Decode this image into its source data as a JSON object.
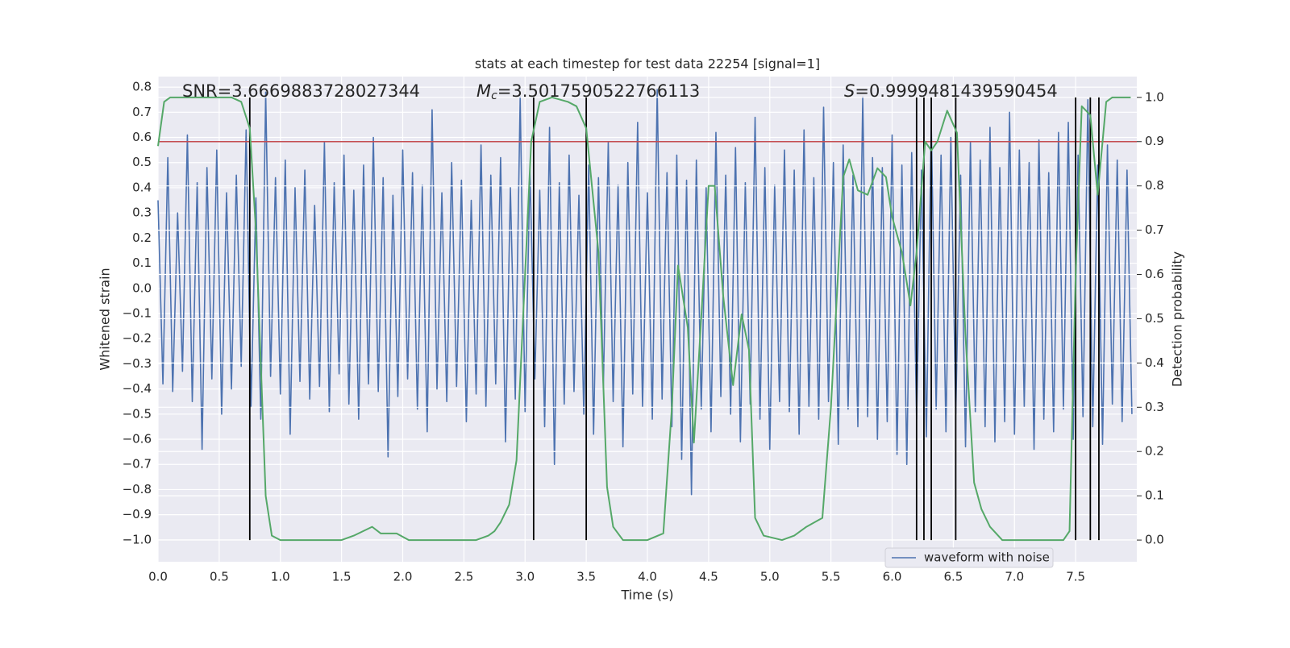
{
  "chart_data": {
    "type": "line",
    "title": "stats at each timestep for test data 22254 [signal=1]",
    "xlabel": "Time (s)",
    "ylabel": "Whitened strain",
    "y2label": "Detection probability",
    "annotations": [
      {
        "text": "SNR=3.6669883728027344"
      },
      {
        "symbol": "M",
        "subscript": "c",
        "text": "=3.5017590522766113"
      },
      {
        "symbol": "S",
        "text": "=0.9999481439590454"
      }
    ],
    "xlim": [
      0,
      8.0
    ],
    "ylim": [
      -1.087,
      0.842
    ],
    "y2lim": [
      -0.049,
      1.047
    ],
    "xticks": [
      {
        "value": 0,
        "label": "0.0"
      },
      0.5,
      {
        "value": 1,
        "label": "1.0"
      },
      1.5,
      {
        "value": 2,
        "label": "2.0"
      },
      2.5,
      {
        "value": 3,
        "label": "3.0"
      },
      3.5,
      {
        "value": 4,
        "label": "4.0"
      },
      4.5,
      {
        "value": 5,
        "label": "5.0"
      },
      5.5,
      {
        "value": 6,
        "label": "6.0"
      },
      6.5,
      {
        "value": 7,
        "label": "7.0"
      },
      7.5
    ],
    "yticks": [
      0.8,
      0.7,
      0.6,
      0.5,
      0.4,
      0.3,
      0.2,
      0.1,
      {
        "value": 0,
        "label": "0.0"
      },
      {
        "value": -0.1,
        "label": "−0.1"
      },
      {
        "value": -0.2,
        "label": "−0.2"
      },
      {
        "value": -0.3,
        "label": "−0.3"
      },
      {
        "value": -0.4,
        "label": "−0.4"
      },
      {
        "value": -0.5,
        "label": "−0.5"
      },
      {
        "value": -0.6,
        "label": "−0.6"
      },
      {
        "value": -0.7,
        "label": "−0.7"
      },
      {
        "value": -0.8,
        "label": "−0.8"
      },
      {
        "value": -0.9,
        "label": "−0.9"
      },
      {
        "value": -1.0,
        "label": "−1.0"
      }
    ],
    "y2ticks": [
      {
        "value": 1,
        "label": "1.0"
      },
      0.9,
      0.8,
      0.7,
      0.6,
      0.5,
      0.4,
      0.3,
      0.2,
      0.1,
      {
        "value": 0,
        "label": "0.0"
      }
    ],
    "grid": true,
    "legend": "lower right",
    "threshold": {
      "value": 0.9,
      "axis": "y2",
      "color": "#c44e52"
    },
    "markers": {
      "x": [
        0.75,
        3.07,
        3.5,
        6.2,
        6.26,
        6.32,
        6.52,
        7.5,
        7.62,
        7.69
      ],
      "color": "#000000",
      "axis": "y2",
      "ylim": [
        0,
        1
      ]
    },
    "series": [
      {
        "name": "waveform with noise",
        "color": "#4c72b0",
        "axis": "y",
        "x": [
          0,
          0.04,
          0.08,
          0.12,
          0.16,
          0.2,
          0.24,
          0.28,
          0.32,
          0.36,
          0.4,
          0.44,
          0.48,
          0.52,
          0.56,
          0.6,
          0.64,
          0.68,
          0.72,
          0.76,
          0.8,
          0.84,
          0.88,
          0.92,
          0.96,
          1.0,
          1.04,
          1.08,
          1.12,
          1.16,
          1.2,
          1.24,
          1.28,
          1.32,
          1.36,
          1.4,
          1.44,
          1.48,
          1.52,
          1.56,
          1.6,
          1.64,
          1.68,
          1.72,
          1.76,
          1.8,
          1.84,
          1.88,
          1.92,
          1.96,
          2.0,
          2.04,
          2.08,
          2.12,
          2.16,
          2.2,
          2.24,
          2.28,
          2.32,
          2.36,
          2.4,
          2.44,
          2.48,
          2.52,
          2.56,
          2.6,
          2.64,
          2.68,
          2.72,
          2.76,
          2.8,
          2.84,
          2.88,
          2.92,
          2.96,
          3.0,
          3.04,
          3.08,
          3.12,
          3.16,
          3.2,
          3.24,
          3.28,
          3.32,
          3.36,
          3.4,
          3.44,
          3.48,
          3.52,
          3.56,
          3.6,
          3.64,
          3.68,
          3.72,
          3.76,
          3.8,
          3.84,
          3.88,
          3.92,
          3.96,
          4.0,
          4.04,
          4.08,
          4.12,
          4.16,
          4.2,
          4.24,
          4.28,
          4.32,
          4.36,
          4.4,
          4.44,
          4.48,
          4.52,
          4.56,
          4.6,
          4.64,
          4.68,
          4.72,
          4.76,
          4.8,
          4.84,
          4.88,
          4.92,
          4.96,
          5.0,
          5.04,
          5.08,
          5.12,
          5.16,
          5.2,
          5.24,
          5.28,
          5.32,
          5.36,
          5.4,
          5.44,
          5.48,
          5.52,
          5.56,
          5.6,
          5.64,
          5.68,
          5.72,
          5.76,
          5.8,
          5.84,
          5.88,
          5.92,
          5.96,
          6.0,
          6.04,
          6.08,
          6.12,
          6.16,
          6.2,
          6.24,
          6.28,
          6.32,
          6.36,
          6.4,
          6.44,
          6.48,
          6.52,
          6.56,
          6.6,
          6.64,
          6.68,
          6.72,
          6.76,
          6.8,
          6.84,
          6.88,
          6.92,
          6.96,
          7.0,
          7.04,
          7.08,
          7.12,
          7.16,
          7.2,
          7.24,
          7.28,
          7.32,
          7.36,
          7.4,
          7.44,
          7.48,
          7.52,
          7.56,
          7.6,
          7.64,
          7.68,
          7.72,
          7.76,
          7.8,
          7.84,
          7.88,
          7.92,
          7.96
        ],
        "values": [
          0.35,
          -0.38,
          0.52,
          -0.41,
          0.3,
          -0.33,
          0.61,
          -0.45,
          0.42,
          -0.64,
          0.48,
          -0.36,
          0.55,
          -0.5,
          0.38,
          -0.4,
          0.45,
          -0.31,
          0.63,
          -0.47,
          0.36,
          -0.52,
          0.78,
          -0.35,
          0.44,
          -0.42,
          0.51,
          -0.58,
          0.4,
          -0.37,
          0.47,
          -0.44,
          0.33,
          -0.39,
          0.58,
          -0.49,
          0.42,
          -0.34,
          0.53,
          -0.46,
          0.39,
          -0.52,
          0.49,
          -0.38,
          0.6,
          -0.41,
          0.44,
          -0.67,
          0.37,
          -0.43,
          0.55,
          -0.36,
          0.46,
          -0.48,
          0.41,
          -0.57,
          0.71,
          -0.4,
          0.38,
          -0.45,
          0.5,
          -0.39,
          0.43,
          -0.53,
          0.35,
          -0.42,
          0.57,
          -0.47,
          0.45,
          -0.38,
          0.52,
          -0.61,
          0.4,
          -0.44,
          0.76,
          -0.49,
          0.47,
          -0.36,
          0.39,
          -0.55,
          0.64,
          -0.7,
          0.42,
          -0.46,
          0.53,
          -0.41,
          0.37,
          -0.5,
          0.49,
          -0.58,
          0.44,
          -0.39,
          0.58,
          -0.45,
          0.41,
          -0.63,
          0.5,
          -0.42,
          0.66,
          -0.47,
          0.38,
          -0.52,
          0.79,
          -0.44,
          0.46,
          -0.55,
          0.53,
          -0.68,
          0.43,
          -0.82,
          0.51,
          -0.48,
          0.4,
          -0.57,
          0.62,
          -0.43,
          0.45,
          -0.5,
          0.56,
          -0.61,
          0.42,
          -0.46,
          0.68,
          -0.52,
          0.48,
          -0.64,
          0.41,
          -0.45,
          0.55,
          -0.49,
          0.47,
          -0.58,
          0.63,
          -0.47,
          0.44,
          -0.52,
          0.72,
          -0.45,
          0.5,
          -0.62,
          0.57,
          -0.48,
          0.45,
          -0.55,
          0.76,
          -0.51,
          0.52,
          -0.6,
          0.48,
          -0.53,
          0.61,
          -0.66,
          0.49,
          -0.7,
          0.54,
          -0.52,
          0.47,
          -0.59,
          0.66,
          -0.48,
          0.53,
          -0.57,
          0.6,
          -0.5,
          0.45,
          -0.63,
          0.58,
          -0.49,
          0.51,
          -0.55,
          0.64,
          -0.61,
          0.48,
          -0.53,
          0.7,
          -0.58,
          0.55,
          -0.47,
          0.5,
          -0.64,
          0.59,
          -0.52,
          0.46,
          -0.57,
          0.62,
          -0.48,
          0.66,
          -0.6,
          0.53,
          -0.51,
          0.75,
          -0.55,
          0.49,
          -0.62,
          0.57,
          -0.46,
          0.51,
          -0.53,
          0.47,
          -0.5
        ]
      },
      {
        "color": "#55a868",
        "axis": "y2",
        "x": [
          0.0,
          0.05,
          0.1,
          0.6,
          0.68,
          0.75,
          0.8,
          0.88,
          0.93,
          1.0,
          1.5,
          1.6,
          1.75,
          1.82,
          1.95,
          2.05,
          2.6,
          2.7,
          2.75,
          2.8,
          2.87,
          2.93,
          3.0,
          3.05,
          3.12,
          3.22,
          3.35,
          3.42,
          3.5,
          3.6,
          3.67,
          3.72,
          3.8,
          4.0,
          4.13,
          4.2,
          4.25,
          4.33,
          4.38,
          4.45,
          4.5,
          4.55,
          4.62,
          4.7,
          4.77,
          4.83,
          4.88,
          4.95,
          5.1,
          5.2,
          5.3,
          5.43,
          5.5,
          5.6,
          5.65,
          5.72,
          5.8,
          5.88,
          5.95,
          6.0,
          6.08,
          6.15,
          6.2,
          6.27,
          6.32,
          6.37,
          6.45,
          6.53,
          6.6,
          6.67,
          6.73,
          6.8,
          6.9,
          7.0,
          7.4,
          7.45,
          7.5,
          7.55,
          7.62,
          7.68,
          7.75,
          7.8,
          7.95
        ],
        "values": [
          0.89,
          0.99,
          1.0,
          1.0,
          0.99,
          0.93,
          0.7,
          0.1,
          0.01,
          0.0,
          0.0,
          0.01,
          0.03,
          0.015,
          0.015,
          0.0,
          0.0,
          0.01,
          0.02,
          0.04,
          0.08,
          0.18,
          0.6,
          0.9,
          0.99,
          1.0,
          0.99,
          0.98,
          0.93,
          0.65,
          0.12,
          0.03,
          0.0,
          0.0,
          0.015,
          0.3,
          0.62,
          0.48,
          0.22,
          0.55,
          0.8,
          0.8,
          0.55,
          0.35,
          0.51,
          0.43,
          0.05,
          0.01,
          0.0,
          0.01,
          0.03,
          0.05,
          0.3,
          0.82,
          0.86,
          0.79,
          0.78,
          0.84,
          0.82,
          0.73,
          0.65,
          0.53,
          0.65,
          0.9,
          0.88,
          0.9,
          0.97,
          0.92,
          0.46,
          0.13,
          0.07,
          0.03,
          0.0,
          0.0,
          0.0,
          0.02,
          0.6,
          0.98,
          0.96,
          0.78,
          0.99,
          1.0,
          1.0
        ]
      }
    ]
  }
}
